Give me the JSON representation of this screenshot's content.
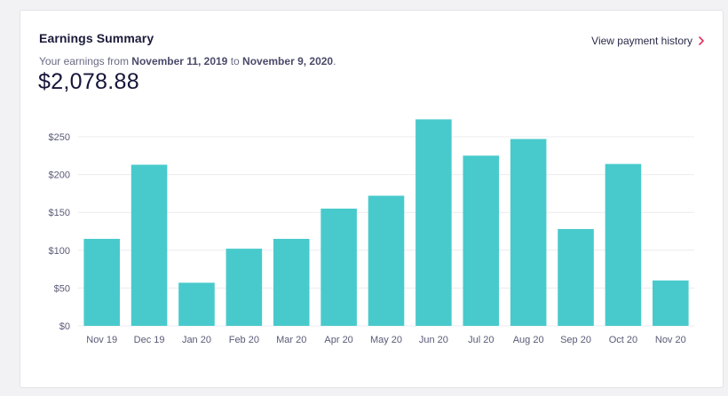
{
  "header": {
    "title": "Earnings Summary",
    "subtitle_prefix": "Your earnings from ",
    "start_date": "November 11, 2019",
    "subtitle_mid": " to ",
    "end_date": "November 9, 2020",
    "subtitle_suffix": ".",
    "total": "$2,078.88",
    "link_label": "View payment history",
    "link_icon": "chevron-right-icon",
    "accent_color": "#e0325a"
  },
  "chart_data": {
    "type": "bar",
    "title": "",
    "xlabel": "",
    "ylabel": "",
    "categories": [
      "Nov 19",
      "Dec 19",
      "Jan 20",
      "Feb 20",
      "Mar 20",
      "Apr 20",
      "May 20",
      "Jun 20",
      "Jul 20",
      "Aug 20",
      "Sep 20",
      "Oct 20",
      "Nov 20"
    ],
    "values": [
      115,
      213,
      57,
      102,
      115,
      155,
      172,
      273,
      225,
      247,
      128,
      214,
      60
    ],
    "ylim": [
      0,
      250
    ],
    "yticks": [
      0,
      50,
      100,
      150,
      200,
      250
    ],
    "ytick_labels": [
      "$0",
      "$50",
      "$100",
      "$150",
      "$200",
      "$250"
    ],
    "grid": true,
    "bar_color": "#48cacc"
  }
}
